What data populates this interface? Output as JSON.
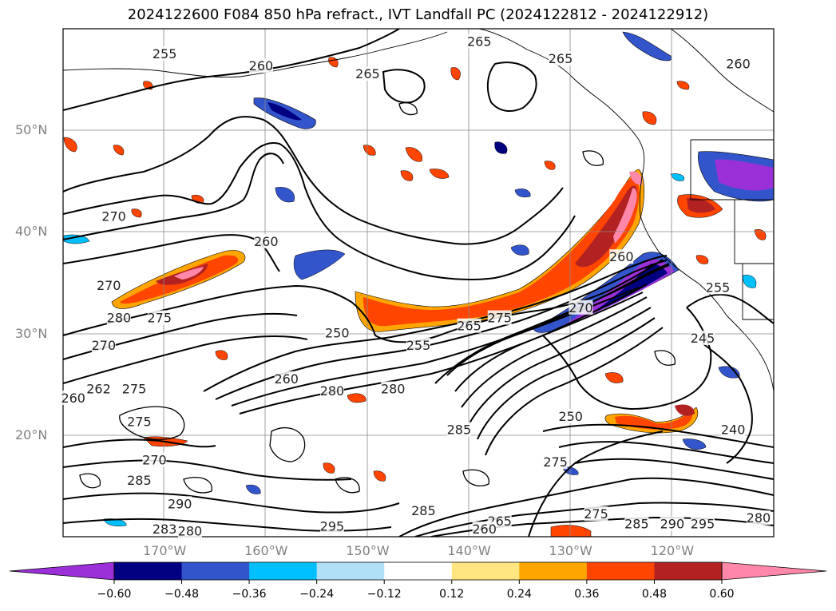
{
  "title": "2024122600 F084 850 hPa refract., IVT Landfall PC (2024122812 - 2024122912)",
  "map": {
    "lat_labels": [
      "50°N",
      "40°N",
      "30°N",
      "20°N"
    ],
    "lat_values": [
      50,
      40,
      30,
      20
    ],
    "lon_labels": [
      "170°W",
      "160°W",
      "150°W",
      "140°W",
      "130°W",
      "120°W"
    ],
    "lon_values": [
      -170,
      -160,
      -150,
      -140,
      -130,
      -120
    ],
    "lat_range": [
      10,
      60
    ],
    "lon_range": [
      -180,
      -110
    ],
    "contour_labels": [
      {
        "text": "255",
        "lon": -170,
        "lat": 57.5
      },
      {
        "text": "260",
        "lon": -160.5,
        "lat": 56.3
      },
      {
        "text": "265",
        "lon": -150,
        "lat": 55.5
      },
      {
        "text": "265",
        "lon": -139,
        "lat": 58.7
      },
      {
        "text": "265",
        "lon": -131,
        "lat": 57
      },
      {
        "text": "260",
        "lon": -113.5,
        "lat": 56.5
      },
      {
        "text": "270",
        "lon": -175,
        "lat": 41.5
      },
      {
        "text": "260",
        "lon": -160,
        "lat": 39
      },
      {
        "text": "270",
        "lon": -175.5,
        "lat": 34.7
      },
      {
        "text": "280",
        "lon": -174.5,
        "lat": 31.5
      },
      {
        "text": "275",
        "lon": -170.5,
        "lat": 31.5
      },
      {
        "text": "270",
        "lon": -176,
        "lat": 28.8
      },
      {
        "text": "250",
        "lon": -153,
        "lat": 30
      },
      {
        "text": "255",
        "lon": -145,
        "lat": 28.8
      },
      {
        "text": "265",
        "lon": -140,
        "lat": 30.7
      },
      {
        "text": "275",
        "lon": -137,
        "lat": 31.5
      },
      {
        "text": "270",
        "lon": -129,
        "lat": 32.5
      },
      {
        "text": "260",
        "lon": -125,
        "lat": 37.5
      },
      {
        "text": "255",
        "lon": -115.5,
        "lat": 34.5
      },
      {
        "text": "245",
        "lon": -117,
        "lat": 29.5
      },
      {
        "text": "260",
        "lon": -158,
        "lat": 25.5
      },
      {
        "text": "280",
        "lon": -153.5,
        "lat": 24.3
      },
      {
        "text": "280",
        "lon": -147.5,
        "lat": 24.5
      },
      {
        "text": "260",
        "lon": -179,
        "lat": 23.6
      },
      {
        "text": "262",
        "lon": -176.5,
        "lat": 24.5
      },
      {
        "text": "275",
        "lon": -173,
        "lat": 24.5
      },
      {
        "text": "275",
        "lon": -172.5,
        "lat": 21.3
      },
      {
        "text": "285",
        "lon": -141,
        "lat": 20.5
      },
      {
        "text": "250",
        "lon": -130,
        "lat": 21.8
      },
      {
        "text": "240",
        "lon": -114,
        "lat": 20.5
      },
      {
        "text": "270",
        "lon": -171,
        "lat": 17.5
      },
      {
        "text": "285",
        "lon": -172.5,
        "lat": 15.5
      },
      {
        "text": "275",
        "lon": -131.5,
        "lat": 17.3
      },
      {
        "text": "290",
        "lon": -168.5,
        "lat": 13.2
      },
      {
        "text": "285",
        "lon": -144.5,
        "lat": 12.5
      },
      {
        "text": "265",
        "lon": -137,
        "lat": 11.5
      },
      {
        "text": "260",
        "lon": -138.5,
        "lat": 10.7
      },
      {
        "text": "275",
        "lon": -127.5,
        "lat": 12.2
      },
      {
        "text": "285",
        "lon": -123.5,
        "lat": 11.2
      },
      {
        "text": "290",
        "lon": -120,
        "lat": 11.2
      },
      {
        "text": "295",
        "lon": -117,
        "lat": 11.2
      },
      {
        "text": "280",
        "lon": -111.5,
        "lat": 11.8
      },
      {
        "text": "295",
        "lon": -153.5,
        "lat": 11
      },
      {
        "text": "283",
        "lon": -170,
        "lat": 10.7
      },
      {
        "text": "280",
        "lon": -167.5,
        "lat": 10.5
      }
    ]
  },
  "colorbar": {
    "colors": [
      "#9b30d9",
      "#000080",
      "#3355cc",
      "#00bfff",
      "#b0e0f8",
      "#ffffff",
      "#ffe680",
      "#ffa500",
      "#ff4500",
      "#b22222",
      "#ff88aa"
    ],
    "tick_labels": [
      "−0.60",
      "−0.48",
      "−0.36",
      "−0.24",
      "−0.12",
      "0.12",
      "0.24",
      "0.36",
      "0.48",
      "0.60"
    ],
    "tick_values": [
      -0.6,
      -0.48,
      -0.36,
      -0.24,
      -0.12,
      0.12,
      0.24,
      0.36,
      0.48,
      0.6
    ]
  }
}
